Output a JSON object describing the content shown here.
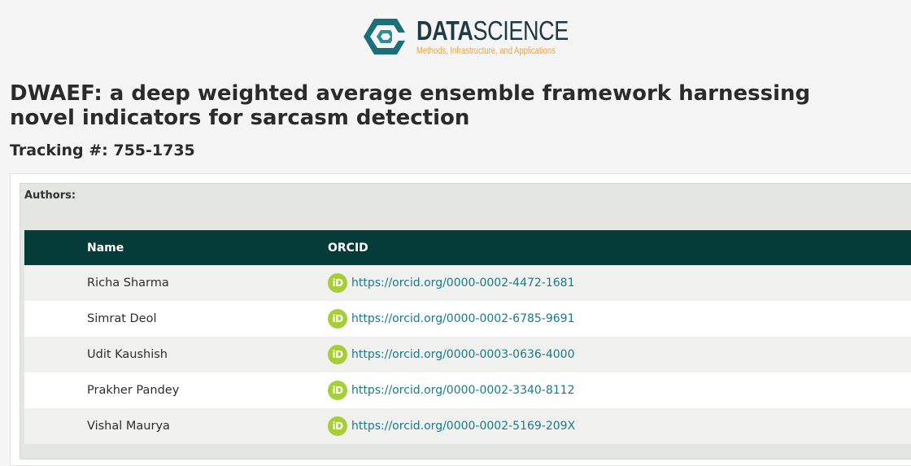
{
  "site": {
    "logo_name_bold": "DATA",
    "logo_name_light": "SCIENCE",
    "logo_tagline": "Methods, Infrastructure, and Applications",
    "logo_icon": "hexagon-logo-icon",
    "brand_color": "#1a6f7a",
    "tagline_color": "#e8a33d"
  },
  "paper": {
    "title": "DWAEF: a deep weighted average ensemble framework harnessing novel indicators for sarcasm detection",
    "tracking": "Tracking #: 755-1735"
  },
  "authors": {
    "label": "Authors:",
    "columns": [
      "Name",
      "ORCID"
    ],
    "header_color": "#053c3a",
    "orcid_icon": "orcid-id-icon",
    "rows": [
      {
        "name": "Richa Sharma",
        "orcid": "https://orcid.org/0000-0002-4472-1681"
      },
      {
        "name": "Simrat Deol",
        "orcid": "https://orcid.org/0000-0002-6785-9691"
      },
      {
        "name": "Udit Kaushish",
        "orcid": "https://orcid.org/0000-0003-0636-4000"
      },
      {
        "name": "Prakher Pandey",
        "orcid": "https://orcid.org/0000-0002-3340-8112"
      },
      {
        "name": "Vishal Maurya",
        "orcid": "https://orcid.org/0000-0002-5169-209X"
      }
    ]
  }
}
